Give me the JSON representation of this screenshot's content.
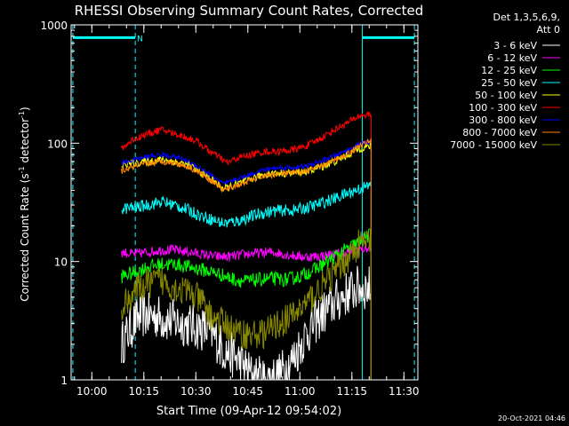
{
  "chart_data": {
    "type": "line",
    "title": "RHESSI Observing Summary Count Rates, Corrected",
    "xlabel": "Start Time (09-Apr-12 09:54:02)",
    "ylabel_parts": [
      "Corrected Count Rate (s",
      "-1",
      " detector",
      "-1",
      ")"
    ],
    "y_scale": "log",
    "ylim": [
      1,
      1000
    ],
    "y_ticks": [
      {
        "value": 1,
        "label": "1"
      },
      {
        "value": 10,
        "label": "10"
      },
      {
        "value": 100,
        "label": "100"
      },
      {
        "value": 1000,
        "label": "1000"
      }
    ],
    "x_unit": "minutes since 09:54:02",
    "xlim": [
      0,
      100
    ],
    "x_ticks": [
      {
        "value": 5.97,
        "label": "10:00"
      },
      {
        "value": 20.97,
        "label": "10:15"
      },
      {
        "value": 35.97,
        "label": "10:30"
      },
      {
        "value": 50.97,
        "label": "10:45"
      },
      {
        "value": 65.97,
        "label": "11:00"
      },
      {
        "value": 80.97,
        "label": "11:15"
      },
      {
        "value": 95.97,
        "label": "11:30"
      }
    ],
    "legend_header": [
      "Det 1,3,5,6,9,",
      "Att 0"
    ],
    "night_bars": [
      {
        "x0": 0.5,
        "x1": 18.5,
        "y": 780,
        "label": "N"
      },
      {
        "x0": 84.0,
        "x1": 99.0,
        "y": 780,
        "label": ""
      }
    ],
    "vlines": [
      {
        "x": 0.5,
        "style": "dashed"
      },
      {
        "x": 18.5,
        "style": "dashed"
      },
      {
        "x": 84.0,
        "style": "solid"
      },
      {
        "x": 99.0,
        "style": "dashed"
      }
    ],
    "data_range": [
      14.5,
      86.5
    ],
    "series": [
      {
        "name": "3 - 6 keV",
        "color": "#ffffff",
        "points": [
          [
            14.5,
            2
          ],
          [
            18,
            3
          ],
          [
            20,
            3.5
          ],
          [
            24,
            3.5
          ],
          [
            28,
            3.2
          ],
          [
            32,
            3
          ],
          [
            36,
            2.8
          ],
          [
            40,
            2.6
          ],
          [
            44,
            1.8
          ],
          [
            48,
            1.5
          ],
          [
            52,
            1.1
          ],
          [
            56,
            1
          ],
          [
            60,
            1.1
          ],
          [
            64,
            1.5
          ],
          [
            68,
            2.5
          ],
          [
            72,
            3.5
          ],
          [
            76,
            4.5
          ],
          [
            80,
            5.5
          ],
          [
            83,
            6
          ],
          [
            86.5,
            6
          ]
        ]
      },
      {
        "name": "6 - 12 keV",
        "color": "#ff00ff",
        "points": [
          [
            14.5,
            12
          ],
          [
            18,
            11.5
          ],
          [
            22,
            12
          ],
          [
            26,
            12.5
          ],
          [
            30,
            12.5
          ],
          [
            34,
            12
          ],
          [
            38,
            11.5
          ],
          [
            42,
            11
          ],
          [
            46,
            11
          ],
          [
            50,
            11.5
          ],
          [
            54,
            11.8
          ],
          [
            58,
            12
          ],
          [
            62,
            11.5
          ],
          [
            66,
            11
          ],
          [
            70,
            11
          ],
          [
            74,
            11.3
          ],
          [
            78,
            11.8
          ],
          [
            82,
            12.5
          ],
          [
            86.5,
            13
          ]
        ]
      },
      {
        "name": "12 - 25 keV",
        "color": "#00ff00",
        "points": [
          [
            14.5,
            7.5
          ],
          [
            18,
            8
          ],
          [
            22,
            9
          ],
          [
            26,
            9.5
          ],
          [
            30,
            9.5
          ],
          [
            34,
            9
          ],
          [
            38,
            8.5
          ],
          [
            42,
            8
          ],
          [
            46,
            7.2
          ],
          [
            50,
            6.8
          ],
          [
            54,
            7
          ],
          [
            58,
            7.2
          ],
          [
            62,
            7
          ],
          [
            66,
            7.5
          ],
          [
            70,
            8.5
          ],
          [
            74,
            10
          ],
          [
            78,
            12
          ],
          [
            82,
            14
          ],
          [
            86.5,
            17
          ]
        ]
      },
      {
        "name": "25 - 50 keV",
        "color": "#00ffff",
        "points": [
          [
            14.5,
            28
          ],
          [
            18,
            28.5
          ],
          [
            22,
            30
          ],
          [
            26,
            32
          ],
          [
            30,
            30
          ],
          [
            34,
            27
          ],
          [
            38,
            24
          ],
          [
            42,
            22
          ],
          [
            44,
            21
          ],
          [
            48,
            22
          ],
          [
            52,
            24
          ],
          [
            56,
            26
          ],
          [
            60,
            27
          ],
          [
            64,
            27
          ],
          [
            68,
            28.5
          ],
          [
            72,
            31
          ],
          [
            76,
            34
          ],
          [
            80,
            38
          ],
          [
            83,
            41
          ],
          [
            86.5,
            44
          ]
        ]
      },
      {
        "name": "50 - 100 keV",
        "color": "#ffff00",
        "points": [
          [
            14.5,
            65
          ],
          [
            18,
            68
          ],
          [
            22,
            70
          ],
          [
            26,
            73
          ],
          [
            30,
            70
          ],
          [
            34,
            65
          ],
          [
            38,
            55
          ],
          [
            42,
            46
          ],
          [
            44,
            41
          ],
          [
            48,
            45
          ],
          [
            52,
            50
          ],
          [
            56,
            55
          ],
          [
            60,
            56
          ],
          [
            64,
            56
          ],
          [
            68,
            58
          ],
          [
            72,
            63
          ],
          [
            76,
            70
          ],
          [
            80,
            80
          ],
          [
            83,
            90
          ],
          [
            86.5,
            95
          ]
        ]
      },
      {
        "name": "100 - 300 keV",
        "color": "#ff0000",
        "points": [
          [
            14.5,
            90
          ],
          [
            18,
            108
          ],
          [
            22,
            120
          ],
          [
            26,
            130
          ],
          [
            28,
            125
          ],
          [
            32,
            115
          ],
          [
            36,
            105
          ],
          [
            40,
            85
          ],
          [
            43,
            75
          ],
          [
            45,
            68
          ],
          [
            48,
            75
          ],
          [
            52,
            80
          ],
          [
            56,
            85
          ],
          [
            60,
            85
          ],
          [
            64,
            88
          ],
          [
            68,
            95
          ],
          [
            72,
            110
          ],
          [
            76,
            130
          ],
          [
            80,
            150
          ],
          [
            83,
            170
          ],
          [
            86.5,
            175
          ]
        ]
      },
      {
        "name": "300 - 800 keV",
        "color": "#0000ff",
        "points": [
          [
            14.5,
            68
          ],
          [
            18,
            72
          ],
          [
            22,
            77
          ],
          [
            26,
            80
          ],
          [
            30,
            77
          ],
          [
            34,
            70
          ],
          [
            38,
            60
          ],
          [
            42,
            50
          ],
          [
            44,
            45
          ],
          [
            48,
            50
          ],
          [
            52,
            55
          ],
          [
            56,
            60
          ],
          [
            60,
            62
          ],
          [
            64,
            62
          ],
          [
            68,
            64
          ],
          [
            72,
            70
          ],
          [
            76,
            78
          ],
          [
            80,
            88
          ],
          [
            83,
            98
          ],
          [
            86.5,
            103
          ]
        ]
      },
      {
        "name": "800 - 7000 keV",
        "color": "#ff8800",
        "points": [
          [
            14.5,
            58
          ],
          [
            18,
            63
          ],
          [
            22,
            67
          ],
          [
            26,
            70
          ],
          [
            30,
            68
          ],
          [
            34,
            63
          ],
          [
            38,
            54
          ],
          [
            42,
            45
          ],
          [
            44,
            40
          ],
          [
            48,
            44
          ],
          [
            52,
            49
          ],
          [
            56,
            53
          ],
          [
            60,
            55
          ],
          [
            64,
            56
          ],
          [
            68,
            58
          ],
          [
            72,
            64
          ],
          [
            76,
            72
          ],
          [
            80,
            82
          ],
          [
            83,
            95
          ],
          [
            86.5,
            105
          ]
        ]
      },
      {
        "name": "7000 - 15000 keV",
        "color": "#888800",
        "points": [
          [
            14.5,
            4
          ],
          [
            18,
            5.5
          ],
          [
            22,
            6.5
          ],
          [
            26,
            7
          ],
          [
            30,
            6
          ],
          [
            34,
            5.5
          ],
          [
            38,
            4.5
          ],
          [
            40,
            3.5
          ],
          [
            44,
            3
          ],
          [
            48,
            2.5
          ],
          [
            52,
            2.4
          ],
          [
            56,
            2.5
          ],
          [
            60,
            3
          ],
          [
            64,
            3.5
          ],
          [
            68,
            4.5
          ],
          [
            72,
            6
          ],
          [
            76,
            8
          ],
          [
            80,
            11
          ],
          [
            83,
            14
          ],
          [
            86.5,
            15
          ]
        ]
      }
    ]
  },
  "footer_timestamp": "20-Oct-2021 04:46"
}
